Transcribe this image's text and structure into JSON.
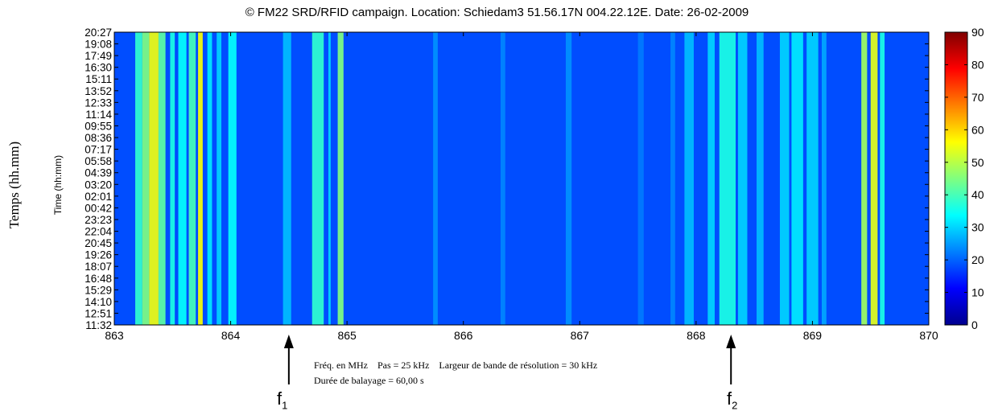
{
  "chart_data": {
    "type": "heatmap",
    "title": "© FM22 SRD/RFID campaign. Location: Schiedam3 51.56.17N 004.22.12E. Date: 26-02-2009",
    "ylabel_outer": "Temps (hh.mm)",
    "ylabel": "Time (hh:mm)",
    "xlabel_lines": [
      "Fréq. en MHz    Pas = 25 kHz    Largeur de bande de résolution = 30 kHz",
      "Durée de balayage = 60,00 s"
    ],
    "x_ticks": [
      "863",
      "864",
      "865",
      "866",
      "867",
      "868",
      "869",
      "870"
    ],
    "xlim": [
      863,
      870
    ],
    "y_ticks": [
      "20:27",
      "19:08",
      "17:49",
      "16:30",
      "15:11",
      "13:52",
      "12:33",
      "11:14",
      "09:55",
      "08:36",
      "07:17",
      "05:58",
      "04:39",
      "03:20",
      "02:01",
      "00:42",
      "23:23",
      "22:04",
      "20:45",
      "19:26",
      "18:07",
      "16:48",
      "15:29",
      "14:10",
      "12:51",
      "11:32"
    ],
    "colorbar_ticks": [
      "90",
      "80",
      "70",
      "60",
      "50",
      "40",
      "30",
      "20",
      "10",
      "0"
    ],
    "clim": [
      0,
      90
    ],
    "background_level": 18,
    "frequency_bands": [
      {
        "f_start": 863.18,
        "f_end": 863.24,
        "level": 38
      },
      {
        "f_start": 863.24,
        "f_end": 863.3,
        "level": 45
      },
      {
        "f_start": 863.3,
        "f_end": 863.38,
        "level": 55
      },
      {
        "f_start": 863.38,
        "f_end": 863.44,
        "level": 42
      },
      {
        "f_start": 863.48,
        "f_end": 863.52,
        "level": 36
      },
      {
        "f_start": 863.55,
        "f_end": 863.62,
        "level": 34
      },
      {
        "f_start": 863.64,
        "f_end": 863.7,
        "level": 40
      },
      {
        "f_start": 863.72,
        "f_end": 863.76,
        "level": 56
      },
      {
        "f_start": 863.8,
        "f_end": 863.84,
        "level": 32
      },
      {
        "f_start": 863.88,
        "f_end": 863.92,
        "level": 30
      },
      {
        "f_start": 863.98,
        "f_end": 864.05,
        "level": 34
      },
      {
        "f_start": 864.45,
        "f_end": 864.52,
        "level": 28
      },
      {
        "f_start": 864.7,
        "f_end": 864.8,
        "level": 38
      },
      {
        "f_start": 864.84,
        "f_end": 864.86,
        "level": 30
      },
      {
        "f_start": 864.92,
        "f_end": 864.97,
        "level": 45
      },
      {
        "f_start": 865.74,
        "f_end": 865.78,
        "level": 24
      },
      {
        "f_start": 866.32,
        "f_end": 866.36,
        "level": 23
      },
      {
        "f_start": 866.88,
        "f_end": 866.93,
        "level": 24
      },
      {
        "f_start": 867.5,
        "f_end": 867.55,
        "level": 22
      },
      {
        "f_start": 867.78,
        "f_end": 867.82,
        "level": 23
      },
      {
        "f_start": 867.9,
        "f_end": 867.98,
        "level": 28
      },
      {
        "f_start": 868.1,
        "f_end": 868.16,
        "level": 30
      },
      {
        "f_start": 868.2,
        "f_end": 868.34,
        "level": 36
      },
      {
        "f_start": 868.36,
        "f_end": 868.44,
        "level": 30
      },
      {
        "f_start": 868.52,
        "f_end": 868.58,
        "level": 28
      },
      {
        "f_start": 868.72,
        "f_end": 868.8,
        "level": 30
      },
      {
        "f_start": 868.82,
        "f_end": 868.92,
        "level": 32
      },
      {
        "f_start": 868.95,
        "f_end": 869.05,
        "level": 30
      },
      {
        "f_start": 869.08,
        "f_end": 869.12,
        "level": 26
      },
      {
        "f_start": 869.42,
        "f_end": 869.47,
        "level": 48
      },
      {
        "f_start": 869.5,
        "f_end": 869.56,
        "level": 54
      },
      {
        "f_start": 869.58,
        "f_end": 869.62,
        "level": 36
      }
    ],
    "annotations": [
      {
        "label": "f",
        "subscript": "1",
        "freq": 864.5
      },
      {
        "label": "f",
        "subscript": "2",
        "freq": 868.3
      }
    ],
    "colormap": "jet"
  }
}
